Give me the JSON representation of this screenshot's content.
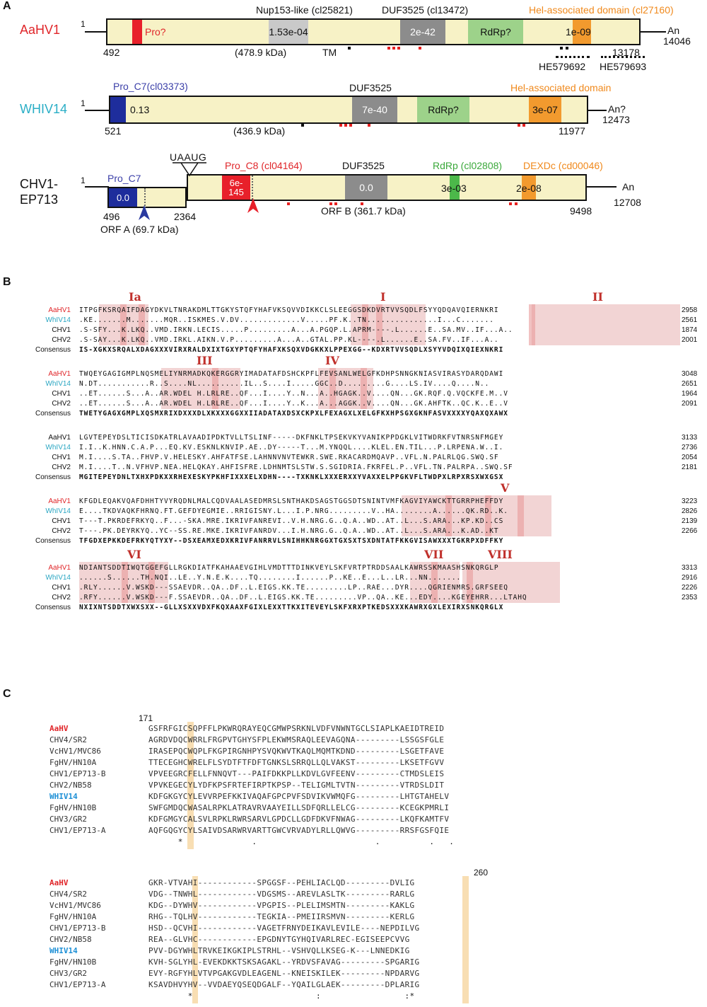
{
  "panelA": {
    "letter": "A",
    "aahv": {
      "name": "AaHV1",
      "start": "1",
      "pro": "Pro?",
      "nup_label": "Nup153-like (cl25821)",
      "nup_e": "1.53e-04",
      "duf_label": "DUF3525 (cl13472)",
      "duf_e": "2e-42",
      "rdrp": "RdRp?",
      "hel_label": "Hel-associated domain (cl27160)",
      "hel_e": "1e-09",
      "orf_start": "492",
      "mw": "(478.9 kDa)",
      "tm": "TM",
      "orf_end": "13178",
      "an": "An",
      "end": "14046",
      "he1": "HE579692",
      "he2": "HE579693"
    },
    "whiv": {
      "name": "WHIV14",
      "start": "1",
      "pro_label": "Pro_C7(cl03373)",
      "pro_e": "0.13",
      "duf_label": "DUF3525",
      "duf_e": "7e-40",
      "rdrp": "RdRp?",
      "hel_label": "Hel-associated domain",
      "hel_e": "3e-07",
      "orf_start": "521",
      "mw": "(436.9 kDa)",
      "orf_end": "11977",
      "an": "An?",
      "end": "12473"
    },
    "chv": {
      "name1": "CHV1-",
      "name2": "EP713",
      "start": "1",
      "pro_c7": "Pro_C7",
      "pro_c7_e": "0.0",
      "uaaug": "UAAUG",
      "pro_c8_label": "Pro_C8 (cl04164)",
      "pro_c8_e1": "6e-",
      "pro_c8_e2": "145",
      "duf_label": "DUF3525",
      "duf_e": "0.0",
      "rdrp_label": "RdRp (cl02808)",
      "rdrp_e": "3e-03",
      "dexdc_label": "DEXDc (cd00046)",
      "dexdc_e": "2e-08",
      "orfa_start": "496",
      "orfa_end": "2364",
      "orfa": "ORF A (69.7 kDa)",
      "orfb": "ORF B (361.7 kDa)",
      "orfb_end": "9498",
      "an": "An",
      "end": "12708"
    }
  },
  "panelB": {
    "letter": "B",
    "blocks": [
      {
        "motifs": [
          "Ia",
          "I",
          "II"
        ],
        "rows": [
          {
            "name": "AaHV1",
            "color": "#e0262a",
            "seq": "ITPGFKSRQAIFDAGYDKVLTNRAKDMLTTGKYSTQFYHAFVKSQVVDIKKCLSLEEGGSDKDVRTVVSQDLFSYYQDQAVQIERNKRI",
            "pos": "2958"
          },
          {
            "name": "WhIV14",
            "color": "#2aa6c2",
            "seq": ".KE.......M.......MQR..ISKMES.V.DV.............V.....PF.K..TN...............I...C.......",
            "pos": "2561"
          },
          {
            "name": "CHV1",
            "color": "#111111",
            "seq": ".S-SFY...K.LKQ..VMD.IRKN.LECIS.....P.........A...A.PGQP.L.APRM----.L......E..SA.MV..IF...A..",
            "pos": "1874"
          },
          {
            "name": "CHV2",
            "color": "#111111",
            "seq": ".S-SAY...K.LKQ..VMD.IRKL.AIKN.V.P.........A...A..GTAL.PP.KL----.L......E..SA.FV..IF...A..",
            "pos": "2001"
          },
          {
            "name": "Consensus",
            "color": "#111111",
            "seq": "IS-XGKXSRQALXDAGXXXVIRXRALDXIXTGXYPTQFYHAFXKSQXVDGKKXLPPEXGG--KDXRTVVSQDLXSYYVDQIXQIEXNKRI",
            "pos": ""
          }
        ]
      },
      {
        "motifs": [
          "III",
          "IV"
        ],
        "rows": [
          {
            "name": "AaHV1",
            "color": "#e0262a",
            "seq": "TWQEYGAGIGMPLNQSMELIYNRMADKQKERGGRYIMADATAFDSHCKPFLFEVSANLWELGFKDHPSNNGKNIASVIRASYDARQDAWI",
            "pos": "3048"
          },
          {
            "name": "WhIV14",
            "color": "#2aa6c2",
            "seq": "N.DT...........R..S....NL..........IL..S....I.....GGC..D.........G....LS.IV....Q....N..",
            "pos": "2651"
          },
          {
            "name": "CHV1",
            "color": "#111111",
            "seq": "..ET......S...A..AR.WDEL H.LRLRE..QF...I....Y..N...A..HGAGK..V....QN...GK.RQF.Q.VQCKFE.M..V",
            "pos": "1964"
          },
          {
            "name": "CHV2",
            "color": "#111111",
            "seq": "..ET......S...A..AR.WDEL H.LRLRE..QF...I....Y..K...A...AGGK..V....QN...GK.AHFTK..QC.K..E..V",
            "pos": "2091"
          },
          {
            "name": "Consensus",
            "color": "#111111",
            "seq": "TWETYGAGXGMPLXQSMXRIXDXXXDLXKXXXGGXXIIADATAXDSXCKPXLFEXAGXLXELGFKXHPSGXGKNFASVXXXXYQAXQXAWX",
            "pos": ""
          }
        ]
      },
      {
        "motifs": [],
        "rows": [
          {
            "name": "AaHV1",
            "color": "#111111",
            "seq": "LGVTEPEYDSLTICISDKATRLAVAADIPDKTVLLTSLINF-----DKFNKLTPSEKVKYVANIKPPDGKLVITWDRKFVTNRSNFMGEY",
            "pos": "3133"
          },
          {
            "name": "WhIV14",
            "color": "#2aa6c2",
            "seq": "I.I..K.HNN.C.A.P...EQ.KV.ESKNLKNVIP.AE..DY-----T...M.YNQQL....KLEL.EN.TIL...P.LRPENA.W..I.",
            "pos": "2736"
          },
          {
            "name": "CHV1",
            "color": "#111111",
            "seq": "M.I....S.TA..FHVP.V.HELESKY.AHFATFSE.LAHNNVNVTEWKR.SWE.RKACARDMQAVP..VFL.N.PALRLQG.SWQ.SF",
            "pos": "2054"
          },
          {
            "name": "CHV2",
            "color": "#111111",
            "seq": "M.I....T..N.VFHVP.NEA.HELQKAY.AHFISFRE.LDHNMTSLSTW.S.SGIDRIA.FKRFEL.P..VFL.TN.PALRPA..SWQ.SF",
            "pos": "2181"
          },
          {
            "name": "Consensus",
            "color": "#111111",
            "seq": "MGITEPEYDNLTXHXPDKXXRHEXESKYPKHFIXXXELXDHN----TXKNKLXXXERXXYVAXXELPPGKVFLTWDPXLRPXRSXWXGSX",
            "pos": ""
          }
        ]
      },
      {
        "motifs": [
          "V"
        ],
        "rows": [
          {
            "name": "AaHV1",
            "color": "#e0262a",
            "seq": "KFGDLEQAKVQAFDHHTYVYRQDNLMALCQDVAALASEDMRSLSNTHAKDSAGSTGGSDTSNINTVMFKAGVIYAWCKTTGRRPHEFFDY",
            "pos": "3223"
          },
          {
            "name": "WhIV14",
            "color": "#2aa6c2",
            "seq": "E....TKDVAQKFHRNQ.FT.GEFDYEGMIE..RRIGISNY.L...I.P.NRG.........V..HA........A......QK.RD..K.",
            "pos": "2826"
          },
          {
            "name": "CHV1",
            "color": "#111111",
            "seq": "T---T.PKRDEFRKYQ..F...-SKA.MRE.IKRIVFANREVI..V.H.NRG.G..Q.A..WD..AT..L...S.ARA...KP.KD..CS",
            "pos": "2139"
          },
          {
            "name": "CHV2",
            "color": "#111111",
            "seq": "T---.PK.DEYRKYQ..YC--SS.RE.MKE.IKRIVFANRDV...I.H.NRG.G..Q.A..WD..AT..L...S.ARA...K.AD..KT",
            "pos": "2266"
          },
          {
            "name": "Consensus",
            "color": "#111111",
            "seq": "TFGDXEPKKDEFRKYQTYXY--DSXEAMXEDXKRIVFANRRVLSNIHHKNRGGXTGXSXTSXDNTATFKKGVISAWXXXTGKRPXDFFKY",
            "pos": ""
          }
        ]
      },
      {
        "motifs": [
          "VI",
          "VII",
          "VIII"
        ],
        "rows": [
          {
            "name": "AaHV1",
            "color": "#e0262a",
            "seq": "NDIANTSDDTIWQTGGEFGLLRGKDIATFKAHAAEVGIHLVMDTTTDINKVEYLSKFVRTPTRDDSAALKAWRSSKMAASHSNKQRGLP",
            "pos": "3313"
          },
          {
            "name": "WhIV14",
            "color": "#2aa6c2",
            "seq": "......S......TH.NQI..LE..Y.N.E.K....TQ........I......P..KE..E...L..LR...NN.......",
            "pos": "2916"
          },
          {
            "name": "CHV1",
            "color": "#111111",
            "seq": ".RLY......V.WSKD---SSAEVDR..QA..DF..L.EIGS.KK.TE.........LP..RAE...DYR....QGRIENMRS.GRFSEEQ",
            "pos": "2226"
          },
          {
            "name": "CHV2",
            "color": "#111111",
            "seq": ".RFY......V.WSKD---F.SSAEVDR..QA..DF..L.EIGS.KK.TE.........VP..QA..KE...EDY....KGEYEHRR...LTAHQ",
            "pos": "2353"
          },
          {
            "name": "Consensus",
            "color": "#111111",
            "seq": "NXIXNTSDDTXWXSXX--GLLXSXXVDXFKQXAAXFGIXLEXXTTKXITEVEYLSKFXRXPTKEDSXXXKAWRXGXLEXIRXSNKQRGLX",
            "pos": ""
          }
        ]
      }
    ]
  },
  "panelC": {
    "letter": "C",
    "start_pos": "171",
    "end_pos": "260",
    "block1": [
      {
        "name": "AaHV",
        "color": "#e0262a",
        "seq": "GSFRFGICSQPFFLPKWRQRAYEQCGMWPSRKNLVDFVNWNTGCLSIAPLKAEIDTREID"
      },
      {
        "name": "CHV4/SR2",
        "color": "#333333",
        "seq": "AGRDVDQCWRRLFRGPVTGHYSFPLEKWMSRAQLEEVAGQNA---------LSSGSFGLE"
      },
      {
        "name": "VcHV1/MVC86",
        "color": "#333333",
        "seq": "IRASEPQCWQPLFKGPIRGNHPYSVQKWVTKAQLMQMTKDND---------LSGETFAVE"
      },
      {
        "name": "FgHV/HN10A",
        "color": "#333333",
        "seq": "TTECEGHCWRELFLSYDTFTFDFTGNKSLSRRQLLQLVAKST---------LKSETFGVV"
      },
      {
        "name": "CHV1/EP713-B",
        "color": "#333333",
        "seq": "VPVEEGRCFELLFNNQVT---PAIFDKKPLLKDVLGVFEENV---------CTMDSLEIS"
      },
      {
        "name": "CHV2/NB58",
        "color": "#333333",
        "seq": "VPVKEGECYLYDFKPSFRTEFIRPTKPSP--TELIGMLTVTN---------VTRDSLDIT"
      },
      {
        "name": "WHIV14",
        "color": "#1e90d6",
        "seq": "KDFGKGYCYLEVVRPEFKKIVAQAFGPCPVFSDVIKVWMQFG---------LHTGTAHELV"
      },
      {
        "name": "FgHV/HN10B",
        "color": "#333333",
        "seq": "SWFGMDQCWASALRPKLATRAVRVAAYEILLSDFQRLLELCG---------KCEGKPMRLI"
      },
      {
        "name": "CHV3/GR2",
        "color": "#333333",
        "seq": "KDFGMGYCALSVLRPKLRWRSARVLGPDCLLGDFDKVFNWAG---------LKQFKAMTFV"
      },
      {
        "name": "CHV1/EP713-A",
        "color": "#333333",
        "seq": "AQFGQGYCYLSAIVDSARWRVARTTGWCVRVADYLRLLQWVG---------RRSFGSFQIE"
      }
    ],
    "cons1": "       *              .                        .          .   .",
    "block2": [
      {
        "name": "AaHV",
        "color": "#e0262a",
        "seq": "GKR-VTVAHI------------SPGGSF--PEHLIACLQD---------DVLIG"
      },
      {
        "name": "CHV4/SR2",
        "color": "#333333",
        "seq": "VDG--TNWHL------------VDGSMS--AREVLASLTK---------RARLG"
      },
      {
        "name": "VcHV1/MVC86",
        "color": "#333333",
        "seq": "KDG--DYWHV------------VPGPIS--PLELIMSMTN---------KAKLG"
      },
      {
        "name": "FgHV/HN10A",
        "color": "#333333",
        "seq": "RHG--TQLHV------------TEGKIA--PMEIIRSMVN---------KERLG"
      },
      {
        "name": "CHV1/EP713-B",
        "color": "#333333",
        "seq": "HSD--QCVHI------------VAGETFRNYDEIKAVLEVILE----NEPDILVG"
      },
      {
        "name": "CHV2/NB58",
        "color": "#333333",
        "seq": "REA--GLVHC------------EPGDNYTGYHQIVARLREC-EGISEEPCVVG"
      },
      {
        "name": "WHIV14",
        "color": "#1e90d6",
        "seq": "PVV-DGYWHLTRVKEIKGKIPLSTRHL--VSHVQLLKSEG-K---LNNEDKIG"
      },
      {
        "name": "FgHV/HN10B",
        "color": "#333333",
        "seq": "KVH-SGLYHL-EVEKDKKTSKSAGAKL--YRDVSFAVAG---------SPGARIG"
      },
      {
        "name": "CHV3/GR2",
        "color": "#333333",
        "seq": "EVY-RGFYHLVTVPGAKGVDLEAGENL--KNEISKILEK---------NPDARVG"
      },
      {
        "name": "CHV1/EP713-A",
        "color": "#333333",
        "seq": "KSAVDHVYHV--VVDAEYQSEQDGALF--YQAILGLAEK---------DPLARIG"
      }
    ],
    "cons2": "         *                         :                 :*"
  }
}
